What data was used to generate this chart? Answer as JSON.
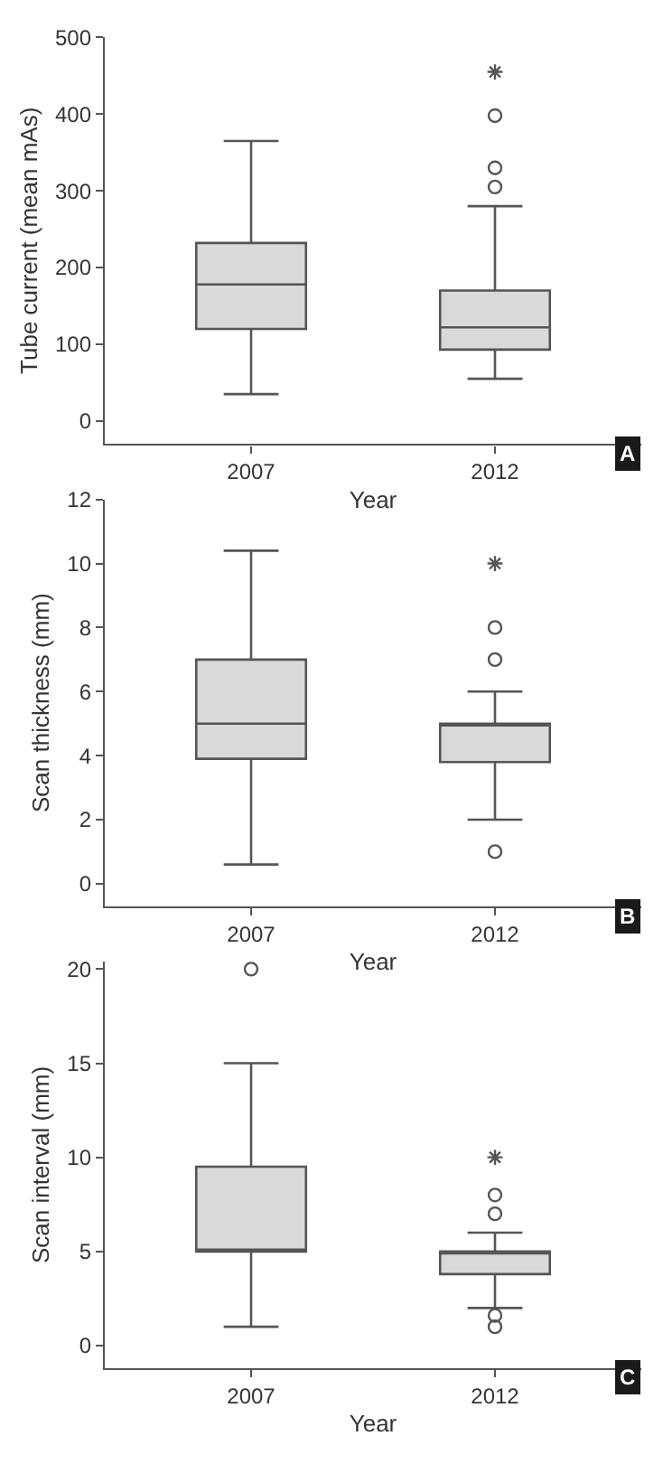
{
  "chart_data": [
    {
      "type": "box",
      "categories": [
        "2007",
        "2012"
      ],
      "xlabel": "Year",
      "ylabel": "Tube current (mean mAs)",
      "ylim": [
        -30,
        500
      ],
      "yticks": [
        0,
        100,
        200,
        300,
        400,
        500
      ],
      "annotations": [
        "A"
      ],
      "series": [
        {
          "color": "#d9d9d9",
          "boxes": [
            {
              "low": 35,
              "q1": 120,
              "median": 178,
              "q3": 232,
              "high": 365
            },
            {
              "low": 55,
              "q1": 93,
              "median": 122,
              "q3": 170,
              "high": 280,
              "outliers": [
                305,
                330,
                398
              ]
            }
          ]
        },
        {
          "type": "scatter",
          "marker": "cross",
          "color": "#555555",
          "values": [
            null,
            455
          ]
        }
      ]
    },
    {
      "type": "box",
      "categories": [
        "2007",
        "2012"
      ],
      "xlabel": "Year",
      "ylabel": "Scan thickness (mm)",
      "ylim": [
        -0.7,
        12
      ],
      "yticks": [
        0,
        2,
        4,
        6,
        8,
        10,
        12
      ],
      "annotations": [
        "B"
      ],
      "series": [
        {
          "color": "#d9d9d9",
          "boxes": [
            {
              "low": 0.6,
              "q1": 3.9,
              "median": 5,
              "q3": 7,
              "high": 10.4
            },
            {
              "low": 2,
              "q1": 3.8,
              "median": 5,
              "q3": 5,
              "high": 6,
              "outliers": [
                1,
                7,
                8
              ]
            }
          ]
        },
        {
          "type": "scatter",
          "marker": "cross",
          "color": "#555555",
          "values": [
            null,
            10
          ]
        }
      ]
    },
    {
      "type": "box",
      "categories": [
        "2007",
        "2012"
      ],
      "xlabel": "Year",
      "ylabel": "Scan interval (mm)",
      "ylim": [
        -1.2,
        20.4
      ],
      "yticks": [
        0,
        5,
        10,
        15,
        20
      ],
      "annotations": [
        "C"
      ],
      "series": [
        {
          "color": "#d9d9d9",
          "boxes": [
            {
              "low": 1,
              "q1": 5,
              "median": 5,
              "q3": 9.5,
              "high": 15,
              "outliers": [
                20
              ]
            },
            {
              "low": 2,
              "q1": 3.8,
              "median": 5,
              "q3": 5,
              "high": 6,
              "outliers": [
                1,
                1.6,
                7,
                8
              ]
            }
          ]
        },
        {
          "type": "scatter",
          "marker": "cross",
          "color": "#555555",
          "values": [
            null,
            10
          ]
        }
      ]
    }
  ]
}
